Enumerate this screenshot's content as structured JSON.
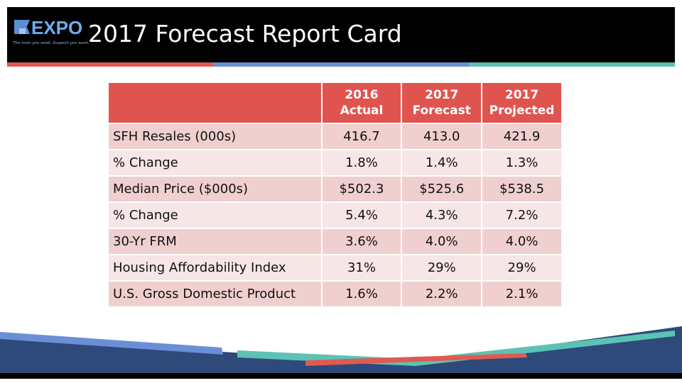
{
  "header": {
    "logo_word": "EXPO",
    "logo_tagline": "The tools you need. Support you want.",
    "title": "2017 Forecast Report Card"
  },
  "colors": {
    "header_bg": "#000000",
    "accent_red": "#e05a52",
    "accent_blue": "#6b8fd6",
    "accent_teal": "#5cc2b4",
    "table_header": "#e05450",
    "row_dark": "#f0cfcf",
    "row_light": "#f7e6e6",
    "navy": "#2e4a7a"
  },
  "table": {
    "columns": [
      {
        "line1": "2016",
        "line2": "Actual"
      },
      {
        "line1": "2017",
        "line2": "Forecast"
      },
      {
        "line1": "2017",
        "line2": "Projected"
      }
    ],
    "rows": [
      {
        "label": "SFH Resales (000s)",
        "values": [
          "416.7",
          "413.0",
          "421.9"
        ]
      },
      {
        "label": "% Change",
        "values": [
          "1.8%",
          "1.4%",
          "1.3%"
        ]
      },
      {
        "label": "Median Price ($000s)",
        "values": [
          "$502.3",
          "$525.6",
          "$538.5"
        ]
      },
      {
        "label": "% Change",
        "values": [
          "5.4%",
          "4.3%",
          "7.2%"
        ]
      },
      {
        "label": "30-Yr FRM",
        "values": [
          "3.6%",
          "4.0%",
          "4.0%"
        ]
      },
      {
        "label": "Housing Affordability Index",
        "values": [
          "31%",
          "29%",
          "29%"
        ]
      },
      {
        "label": "U.S. Gross Domestic Product",
        "values": [
          "1.6%",
          "2.2%",
          "2.1%"
        ]
      }
    ]
  }
}
